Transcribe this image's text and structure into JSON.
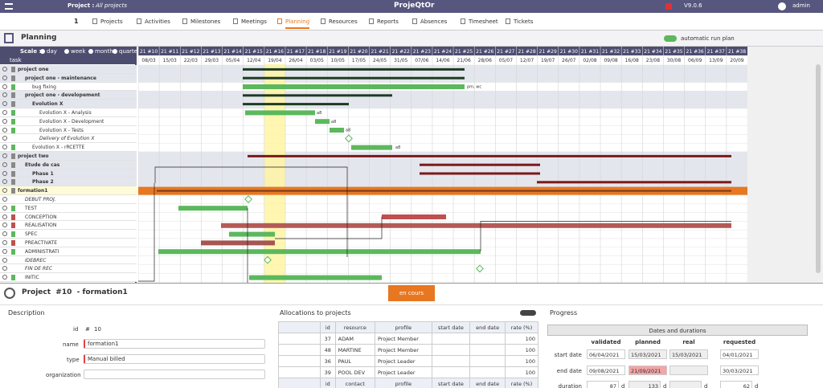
{
  "header": {
    "project_label": "Project :",
    "project_value": "All projects",
    "app_name": "ProjeQtOr",
    "version": "V9.0.6",
    "user": "admin"
  },
  "menu": {
    "count": "1",
    "items": [
      "Projects",
      "Activities",
      "Milestones",
      "Meetings",
      "Planning",
      "Resources",
      "Reports",
      "Absences",
      "Timesheet",
      "Tickets"
    ]
  },
  "planning": {
    "title": "Planning",
    "auto_run": "automatic run plan",
    "scale_label": "Scale :",
    "scales": [
      "day",
      "week",
      "month",
      "quarter"
    ],
    "task_header": "task",
    "weeks": [
      "21 #10",
      "21 #11",
      "21 #12",
      "21 #13",
      "21 #14",
      "21 #15",
      "21 #16",
      "21 #17",
      "21 #18",
      "21 #19",
      "21 #20",
      "21 #21",
      "21 #22",
      "21 #23",
      "21 #24",
      "21 #25",
      "21 #26",
      "21 #27",
      "21 #28",
      "21 #29",
      "21 #30",
      "21 #31",
      "21 #32",
      "21 #33",
      "21 #34",
      "21 #35",
      "21 #36",
      "21 #37",
      "21 #38"
    ],
    "dates": [
      "08/03",
      "15/03",
      "22/03",
      "29/03",
      "05/04",
      "12/04",
      "19/04",
      "26/04",
      "03/05",
      "10/05",
      "17/05",
      "24/05",
      "31/05",
      "07/06",
      "14/06",
      "21/06",
      "28/06",
      "05/07",
      "12/07",
      "19/07",
      "26/07",
      "02/08",
      "09/08",
      "16/08",
      "23/08",
      "30/08",
      "06/09",
      "13/09",
      "20/09"
    ],
    "tasks": [
      "project one",
      "project one - maintenance",
      "bug fixing",
      "project one - developement",
      "Evolution X",
      "Evolution X - Analysis",
      "Evolution X - Development",
      "Evolution X - Tests",
      "Delivery of Evolution X",
      "Evolution X - rRCETTE",
      "project two",
      "Etude de cas",
      "Phase 1",
      "Phase 2",
      "formation1",
      "DEBUT PROJ.",
      "TEST",
      "CONCEPTION",
      "REALISATION",
      "SPEC",
      "PREACTIVATE",
      "ADMINISTRATI",
      "IDEBREC",
      "FIN DE REC",
      "INITIC"
    ],
    "bar_labels": [
      "pm, wc",
      "a8",
      "a8",
      "a8",
      "a8"
    ]
  },
  "detail": {
    "title": "Project  #10  - formation1",
    "status": "en cours",
    "description": {
      "title": "Description",
      "id_label": "id",
      "id_symbol": "#",
      "id_value": 10,
      "name_label": "name",
      "name_value": "formation1",
      "type_label": "type",
      "type_value": "Manual billed",
      "organization_label": "organization"
    },
    "allocations": {
      "title": "Allocations to projects",
      "columns": [
        "id",
        "resource",
        "profile",
        "start date",
        "end date",
        "rate (%)"
      ],
      "rows": [
        {
          "id": 37,
          "resource": "ADAM",
          "profile": "Project Member",
          "rate": 100
        },
        {
          "id": 48,
          "resource": "MARTINE",
          "profile": "Project Member",
          "rate": 100
        },
        {
          "id": 36,
          "resource": "PAUL",
          "profile": "Project Leader",
          "rate": 100
        },
        {
          "id": 39,
          "resource": "POOL DEV",
          "profile": "Project Leader",
          "rate": 100
        }
      ],
      "contact_columns": [
        "id",
        "contact",
        "profile",
        "start date",
        "end date",
        "rate (%)"
      ]
    },
    "progress": {
      "title": "Progress",
      "subtitle": "Dates and durations",
      "columns": [
        "validated",
        "planned",
        "real",
        "requested"
      ],
      "start_label": "start date",
      "end_label": "end date",
      "duration_label": "duration",
      "start": {
        "validated": "06/04/2021",
        "planned": "15/03/2021",
        "real": "15/03/2021",
        "requested": "04/01/2021"
      },
      "end": {
        "validated": "09/08/2021",
        "planned": "21/09/2021",
        "requested": "30/03/2021"
      },
      "duration": {
        "validated": 87,
        "planned": 133,
        "requested": 62
      },
      "unit": "d"
    }
  }
}
